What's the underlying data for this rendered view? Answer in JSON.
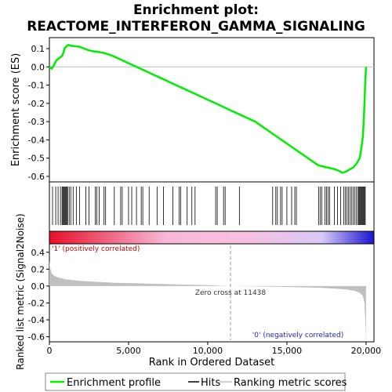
{
  "chart_data": {
    "type": "line",
    "title_line1": "Enrichment plot:",
    "title_line2": "REACTOME_INTERFERON_GAMMA_SIGNALING",
    "es_ylabel": "Enrichment score (ES)",
    "metric_ylabel": "Ranked list metric (Signal2Noise)",
    "xlabel": "Rank in Ordered Dataset",
    "xlim": [
      0,
      20500
    ],
    "es_ylim": [
      -0.63,
      0.16
    ],
    "metric_ylim": [
      -0.66,
      0.5
    ],
    "x_ticks": [
      0,
      5000,
      10000,
      15000,
      20000
    ],
    "x_tick_labels": [
      "0",
      "5,000",
      "10,000",
      "15,000",
      "20,000"
    ],
    "es_ticks": [
      0.1,
      0.0,
      -0.1,
      -0.2,
      -0.3,
      -0.4,
      -0.5,
      -0.6
    ],
    "es_tick_labels": [
      "0.1",
      "0.0",
      "-0.1",
      "-0.2",
      "-0.3",
      "-0.4",
      "-0.5",
      "-0.6"
    ],
    "metric_ticks": [
      0.4,
      0.2,
      0.0,
      -0.2,
      -0.4,
      -0.6
    ],
    "metric_tick_labels": [
      "0.4",
      "0.2",
      "0.0",
      "-0.2",
      "-0.4",
      "-0.6"
    ],
    "zero_cross_rank": 11438,
    "zero_cross_label": "Zero cross at 11438",
    "pos_label": "'1' (positively correlated)",
    "neg_label": "'0' (negatively correlated)",
    "n_genes": 20000,
    "colors": {
      "es_line": "#00ee00",
      "hits": "#000000",
      "metric_fill": "#c0c0c0",
      "pos_end": "#e8102a",
      "mid_pink": "#f8b8d8",
      "neg_end": "#1a14d0",
      "zero_line": "#bbbbbb"
    },
    "series": [
      {
        "name": "Enrichment profile",
        "x": [
          0,
          150,
          300,
          400,
          500,
          650,
          800,
          900,
          950,
          1000,
          1050,
          1100,
          1200,
          1300,
          1400,
          1600,
          1900,
          2200,
          2500,
          2800,
          3000,
          3200,
          3500,
          4000,
          4500,
          5000,
          5500,
          6000,
          6500,
          7000,
          7500,
          8000,
          8500,
          9000,
          9500,
          10000,
          10500,
          11000,
          11500,
          12000,
          12500,
          13000,
          13500,
          14000,
          14500,
          15000,
          15500,
          16000,
          16500,
          17000,
          17500,
          18000,
          18300,
          18500,
          18700,
          18800,
          19000,
          19200,
          19400,
          19600,
          19700,
          19800,
          19850,
          19900,
          19950,
          20000
        ],
        "values": [
          0.0,
          -0.01,
          0.01,
          0.03,
          0.04,
          0.05,
          0.06,
          0.08,
          0.1,
          0.105,
          0.11,
          0.115,
          0.12,
          0.118,
          0.115,
          0.113,
          0.11,
          0.1,
          0.09,
          0.085,
          0.083,
          0.08,
          0.075,
          0.06,
          0.04,
          0.02,
          0.0,
          -0.02,
          -0.04,
          -0.06,
          -0.08,
          -0.1,
          -0.12,
          -0.14,
          -0.16,
          -0.18,
          -0.2,
          -0.22,
          -0.24,
          -0.26,
          -0.28,
          -0.3,
          -0.33,
          -0.36,
          -0.39,
          -0.42,
          -0.45,
          -0.48,
          -0.51,
          -0.54,
          -0.55,
          -0.56,
          -0.57,
          -0.58,
          -0.575,
          -0.57,
          -0.56,
          -0.55,
          -0.53,
          -0.5,
          -0.45,
          -0.38,
          -0.3,
          -0.2,
          -0.08,
          0.0
        ]
      },
      {
        "name": "Hits",
        "x": [
          200,
          400,
          550,
          700,
          800,
          850,
          900,
          950,
          1000,
          1050,
          1100,
          1150,
          1250,
          1350,
          1500,
          1700,
          1900,
          2300,
          2500,
          2900,
          3000,
          3150,
          3450,
          3550,
          4100,
          4500,
          4600,
          5000,
          5200,
          5500,
          5800,
          5900,
          6300,
          6800,
          7200,
          7800,
          8200,
          8300,
          8700,
          9000,
          9200,
          10500,
          10600,
          11000,
          11100,
          12000,
          14100,
          14300,
          14400,
          14600,
          14700,
          15000,
          15300,
          15500,
          15600,
          17000,
          17100,
          17200,
          17400,
          17500,
          17600,
          17700,
          18000,
          18200,
          18400,
          18600,
          18700,
          18800,
          18900,
          19000,
          19100,
          19200,
          19300,
          19400,
          19500,
          19550,
          19600,
          19650,
          19700,
          19750,
          19800,
          19850,
          19900,
          19950
        ]
      },
      {
        "name": "Ranking metric scores",
        "x": [
          0,
          50,
          150,
          300,
          600,
          1000,
          2000,
          4000,
          6000,
          8000,
          10000,
          11438,
          13000,
          15000,
          17000,
          18000,
          18800,
          19300,
          19600,
          19800,
          19900,
          19950,
          20000
        ],
        "values": [
          0.3,
          0.22,
          0.15,
          0.12,
          0.1,
          0.08,
          0.06,
          0.04,
          0.03,
          0.02,
          0.01,
          0.0,
          -0.005,
          -0.01,
          -0.02,
          -0.03,
          -0.04,
          -0.06,
          -0.08,
          -0.12,
          -0.2,
          -0.4,
          -0.64
        ]
      }
    ],
    "legend": {
      "placement": "bottom",
      "entries": [
        "Enrichment profile",
        "Hits",
        "Ranking metric scores"
      ]
    }
  }
}
